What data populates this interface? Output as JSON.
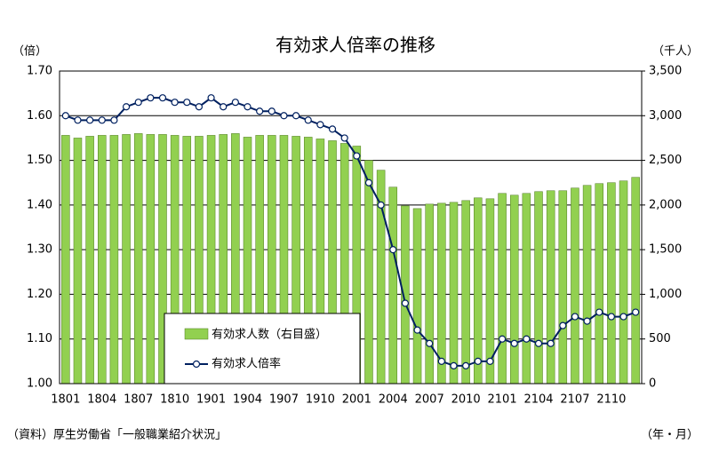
{
  "chart_data": {
    "type": "bar_line",
    "title": "有効求人倍率の推移",
    "y_unit": "（倍）",
    "y2_unit": "（千人）",
    "x_unit": "（年・月）",
    "source": "（資料）厚生労働省「一般職業紹介状況」",
    "categories": [
      "1801",
      null,
      null,
      "1804",
      null,
      null,
      "1807",
      null,
      null,
      "1810",
      null,
      null,
      "1901",
      null,
      null,
      "1904",
      null,
      null,
      "1907",
      null,
      null,
      "1910",
      null,
      null,
      "2001",
      null,
      null,
      "2004",
      null,
      null,
      "2007",
      null,
      null,
      "2010",
      null,
      null,
      "2101",
      null,
      null,
      "2104",
      null,
      null,
      "2107",
      null,
      null,
      "2110",
      null,
      null
    ],
    "series": [
      {
        "name": "有効求人数（右目盛）",
        "color": "#92d050",
        "axis": "y2",
        "values": [
          2780,
          2750,
          2770,
          2780,
          2780,
          2790,
          2800,
          2790,
          2790,
          2780,
          2770,
          2770,
          2780,
          2790,
          2800,
          2760,
          2780,
          2780,
          2780,
          2770,
          2760,
          2740,
          2720,
          2690,
          2660,
          2500,
          2390,
          2200,
          1990,
          1960,
          2010,
          2020,
          2030,
          2050,
          2080,
          2070,
          2130,
          2110,
          2130,
          2150,
          2160,
          2160,
          2190,
          2220,
          2240,
          2250,
          2270,
          2310
        ]
      },
      {
        "name": "有効求人倍率",
        "color": "#002060",
        "axis": "y",
        "values": [
          1.6,
          1.59,
          1.59,
          1.59,
          1.59,
          1.62,
          1.63,
          1.64,
          1.64,
          1.63,
          1.63,
          1.62,
          1.64,
          1.62,
          1.63,
          1.62,
          1.61,
          1.61,
          1.6,
          1.6,
          1.59,
          1.58,
          1.57,
          1.55,
          1.51,
          1.45,
          1.4,
          1.3,
          1.18,
          1.12,
          1.09,
          1.05,
          1.04,
          1.04,
          1.05,
          1.05,
          1.1,
          1.09,
          1.1,
          1.09,
          1.09,
          1.13,
          1.15,
          1.14,
          1.16,
          1.15,
          1.15,
          1.16
        ]
      }
    ],
    "ylim": [
      1.0,
      1.7
    ],
    "yticks": [
      {
        "value": 1.0,
        "label": "1.00"
      },
      {
        "value": 1.1,
        "label": "1.10"
      },
      {
        "value": 1.2,
        "label": "1.20"
      },
      {
        "value": 1.3,
        "label": "1.30"
      },
      {
        "value": 1.4,
        "label": "1.40"
      },
      {
        "value": 1.5,
        "label": "1.50"
      },
      {
        "value": 1.6,
        "label": "1.60"
      },
      {
        "value": 1.7,
        "label": "1.70"
      }
    ],
    "y2lim": [
      0,
      3500
    ],
    "y2ticks": [
      0,
      500,
      {
        "value": 1000,
        "label": "1,000"
      },
      {
        "value": 1500,
        "label": "1,500"
      },
      {
        "value": 2000,
        "label": "2,000"
      },
      {
        "value": 2500,
        "label": "2,500"
      },
      {
        "value": 3000,
        "label": "3,000"
      },
      {
        "value": 3500,
        "label": "3,500"
      }
    ],
    "grid": true
  }
}
